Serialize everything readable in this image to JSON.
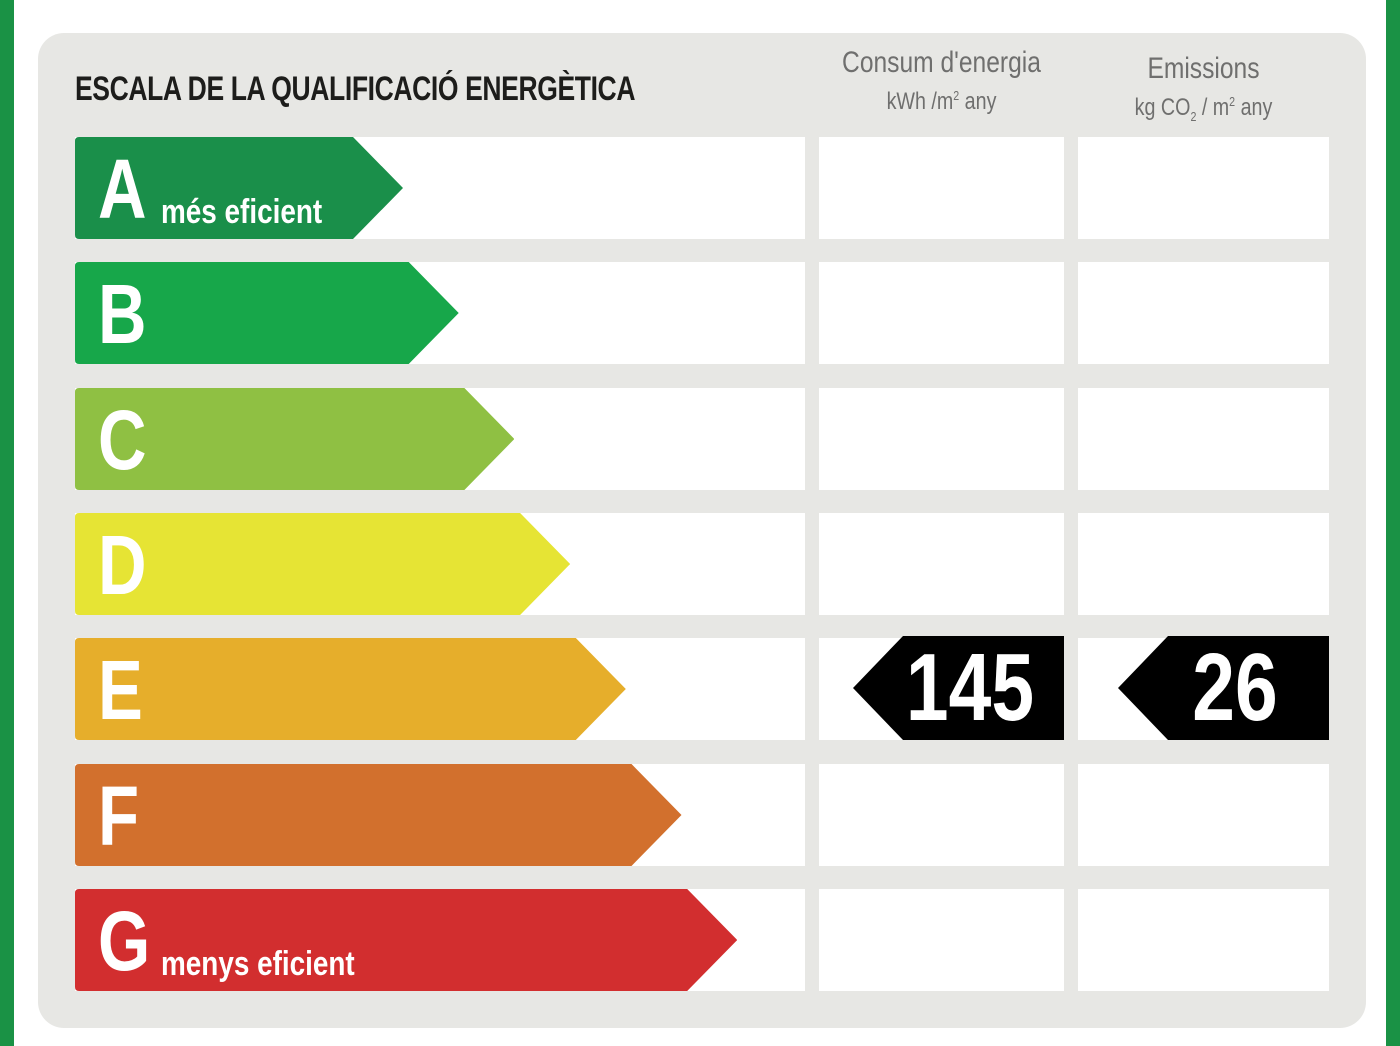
{
  "title": "ESCALA DE LA QUALIFICACIÓ ENERGÈTICA",
  "columns": {
    "consumption": {
      "label": "Consum d'energia",
      "unit_pre": "kWh /m",
      "unit_sup": "2",
      "unit_post": " any"
    },
    "emissions": {
      "label": "Emissions",
      "unit_pre": "kg CO",
      "unit_sub": "2",
      "unit_mid": " / m",
      "unit_sup": "2",
      "unit_post": " any"
    }
  },
  "ratings": [
    {
      "letter": "A",
      "label": "més eficient",
      "color": "#1a8f4a"
    },
    {
      "letter": "B",
      "label": "",
      "color": "#17a74a"
    },
    {
      "letter": "C",
      "label": "",
      "color": "#8fc043"
    },
    {
      "letter": "D",
      "label": "",
      "color": "#e6e434"
    },
    {
      "letter": "E",
      "label": "",
      "color": "#e6ae2b"
    },
    {
      "letter": "F",
      "label": "",
      "color": "#d2702d"
    },
    {
      "letter": "G",
      "label": "menys eficient",
      "color": "#d22e2f"
    }
  ],
  "result": {
    "rating": "E",
    "consumption": "145",
    "emissions": "26"
  },
  "colors": {
    "border": "#1a9245",
    "panel": "#e7e7e4",
    "badge": "#000000"
  }
}
